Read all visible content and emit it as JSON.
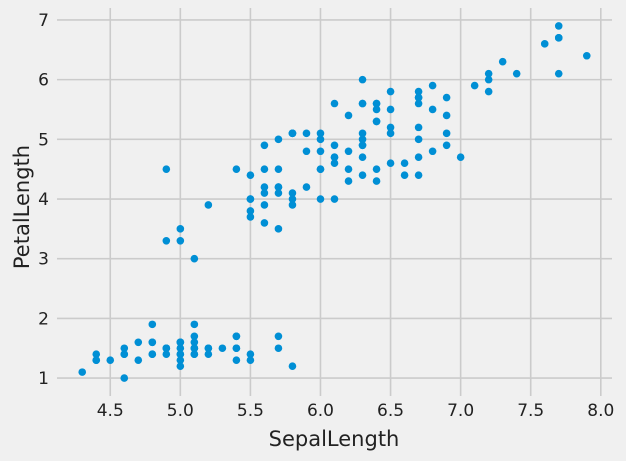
{
  "chart_data": {
    "type": "scatter",
    "title": "",
    "xlabel": "SepalLength",
    "ylabel": "PetalLength",
    "xlim": [
      4.12,
      8.08
    ],
    "ylim": [
      0.7,
      7.2
    ],
    "grid": true,
    "x_ticks": [
      4.5,
      5.0,
      5.5,
      6.0,
      6.5,
      7.0,
      7.5,
      8.0
    ],
    "x_tick_labels": [
      "4.5",
      "5.0",
      "5.5",
      "6.0",
      "6.5",
      "7.0",
      "7.5",
      "8.0"
    ],
    "y_ticks": [
      1,
      2,
      3,
      4,
      5,
      6,
      7
    ],
    "y_tick_labels": [
      "1",
      "2",
      "3",
      "4",
      "5",
      "6",
      "7"
    ],
    "colors": {
      "background": "#f0f0f0",
      "marker": "#008fd5",
      "grid": "#cbcbcb"
    },
    "series": [
      {
        "x": [
          5.1,
          4.9,
          4.7,
          4.6,
          5.0,
          5.4,
          4.6,
          5.0,
          4.4,
          4.9,
          5.4,
          4.8,
          4.8,
          4.3,
          5.8,
          5.7,
          5.4,
          5.1,
          5.7,
          5.1,
          5.4,
          5.1,
          4.6,
          5.1,
          4.8,
          5.0,
          5.0,
          5.2,
          5.2,
          4.7,
          4.8,
          5.4,
          5.2,
          5.5,
          4.9,
          5.0,
          5.5,
          4.9,
          4.4,
          5.1,
          5.0,
          4.5,
          4.4,
          5.0,
          5.1,
          4.8,
          5.1,
          4.6,
          5.3,
          5.0,
          7.0,
          6.4,
          6.9,
          5.5,
          6.5,
          5.7,
          6.3,
          4.9,
          6.6,
          5.2,
          5.0,
          5.9,
          6.0,
          6.1,
          5.6,
          6.7,
          5.6,
          5.8,
          6.2,
          5.6,
          5.9,
          6.1,
          6.3,
          6.1,
          6.4,
          6.6,
          6.8,
          6.7,
          6.0,
          5.7,
          5.5,
          5.5,
          5.8,
          6.0,
          5.4,
          6.0,
          6.7,
          6.3,
          5.6,
          5.5,
          5.5,
          6.1,
          5.8,
          5.0,
          5.6,
          5.7,
          5.7,
          6.2,
          5.1,
          5.7,
          6.3,
          5.8,
          7.1,
          6.3,
          6.5,
          7.6,
          4.9,
          7.3,
          6.7,
          7.2,
          6.5,
          6.4,
          6.8,
          5.7,
          5.8,
          6.4,
          6.5,
          7.7,
          7.7,
          6.0,
          6.9,
          5.6,
          7.7,
          6.3,
          6.7,
          7.2,
          6.2,
          6.1,
          6.4,
          7.2,
          7.4,
          7.9,
          6.4,
          6.3,
          6.1,
          7.7,
          6.3,
          6.4,
          6.0,
          6.9,
          6.7,
          6.9,
          5.8,
          6.8,
          6.7,
          6.7,
          6.3,
          6.5,
          6.2,
          5.9
        ],
        "y": [
          1.4,
          1.4,
          1.3,
          1.5,
          1.4,
          1.7,
          1.4,
          1.5,
          1.4,
          1.5,
          1.5,
          1.6,
          1.4,
          1.1,
          1.2,
          1.5,
          1.3,
          1.4,
          1.7,
          1.5,
          1.7,
          1.5,
          1.0,
          1.7,
          1.9,
          1.6,
          1.6,
          1.5,
          1.4,
          1.6,
          1.6,
          1.5,
          1.5,
          1.4,
          1.5,
          1.2,
          1.3,
          1.5,
          1.3,
          1.5,
          1.3,
          1.3,
          1.3,
          1.6,
          1.9,
          1.4,
          1.6,
          1.4,
          1.5,
          1.4,
          4.7,
          4.5,
          4.9,
          4.0,
          4.6,
          4.5,
          4.7,
          3.3,
          4.6,
          3.9,
          3.5,
          4.2,
          4.0,
          4.7,
          3.6,
          4.4,
          4.5,
          4.1,
          4.5,
          3.9,
          4.8,
          4.0,
          4.9,
          4.7,
          4.3,
          4.4,
          4.8,
          5.0,
          4.5,
          3.5,
          3.8,
          3.7,
          3.9,
          5.1,
          4.5,
          4.5,
          4.7,
          4.4,
          4.1,
          4.0,
          4.4,
          4.6,
          4.0,
          3.3,
          4.2,
          4.2,
          4.2,
          4.3,
          3.0,
          4.1,
          6.0,
          5.1,
          5.9,
          5.6,
          5.8,
          6.6,
          4.5,
          6.3,
          5.8,
          6.1,
          5.1,
          5.3,
          5.5,
          5.0,
          5.1,
          5.3,
          5.5,
          6.7,
          6.9,
          5.0,
          5.7,
          4.9,
          6.7,
          4.9,
          5.7,
          6.0,
          4.8,
          4.9,
          5.6,
          5.8,
          6.1,
          6.4,
          5.6,
          5.1,
          5.6,
          6.1,
          5.6,
          5.5,
          4.8,
          5.4,
          5.6,
          5.1,
          5.1,
          5.9,
          5.7,
          5.2,
          5.0,
          5.2,
          5.4,
          5.1
        ]
      }
    ]
  }
}
